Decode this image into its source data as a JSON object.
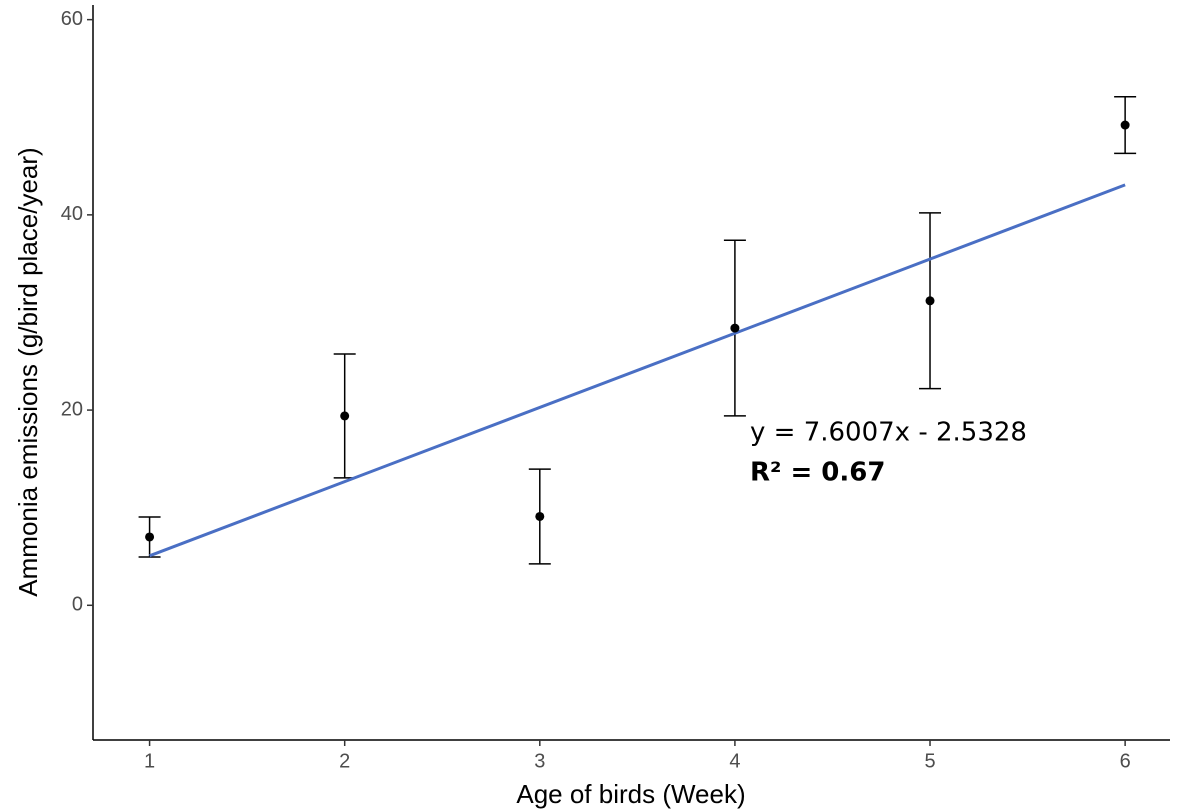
{
  "chart_data": {
    "type": "scatter",
    "x_label": "Age of birds (Week)",
    "y_label": "Ammonia emissions (g/bird place/year)",
    "x": [
      1,
      2,
      3,
      4,
      5,
      6
    ],
    "values": [
      7.0,
      19.4,
      9.1,
      28.4,
      31.2,
      49.2
    ],
    "errors": [
      2.05,
      6.35,
      4.85,
      9.0,
      9.0,
      2.9
    ],
    "color": "#000000",
    "trend": {
      "x": [
        1,
        6
      ],
      "values": [
        5.07,
        43.07
      ],
      "color": "#4a6fc4"
    },
    "annotations": [
      "y = 7.6007x - 2.5328",
      "R² = 0.67"
    ],
    "xlim": [
      0.71,
      6.23
    ],
    "ylim": [
      -13.8,
      61.5
    ],
    "xticks": [
      1,
      2,
      3,
      4,
      5,
      6
    ],
    "yticks": [
      0,
      20,
      40,
      60
    ],
    "grid": false
  }
}
